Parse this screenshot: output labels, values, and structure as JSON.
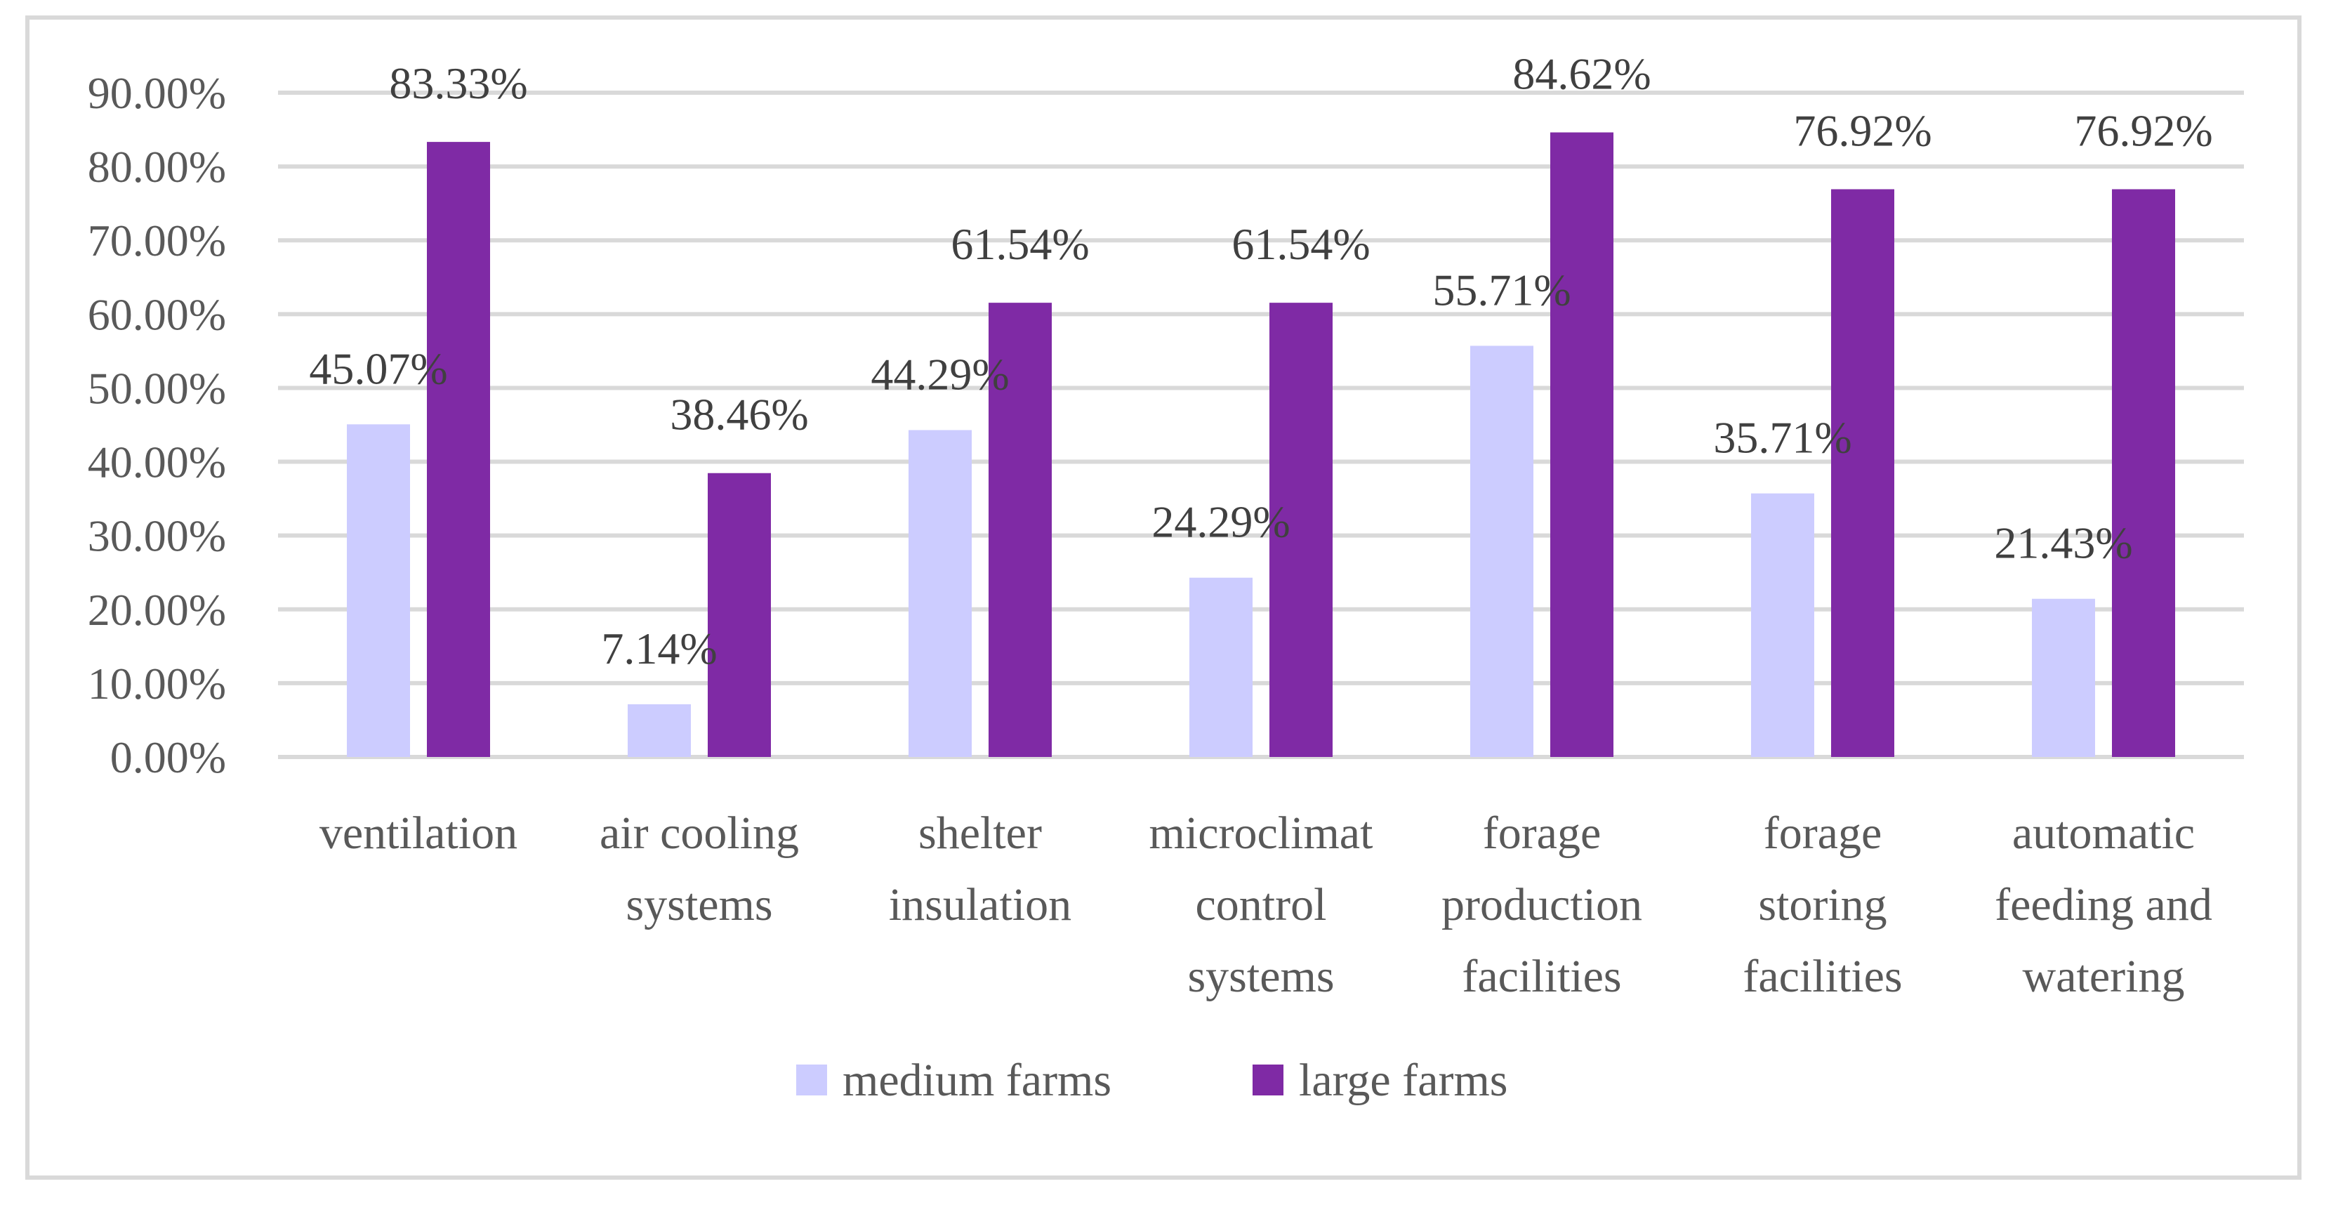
{
  "chart_data": {
    "type": "bar",
    "title": "",
    "xlabel": "",
    "ylabel": "",
    "ylim": [
      0,
      90
    ],
    "yticks": [
      0,
      10,
      20,
      30,
      40,
      50,
      60,
      70,
      80,
      90
    ],
    "ytick_labels": [
      "0.00%",
      "10.00%",
      "20.00%",
      "30.00%",
      "40.00%",
      "50.00%",
      "60.00%",
      "70.00%",
      "80.00%",
      "90.00%"
    ],
    "categories": [
      [
        "ventilation"
      ],
      [
        "air cooling",
        "systems"
      ],
      [
        "shelter",
        "insulation"
      ],
      [
        "microclimat",
        "control",
        "systems"
      ],
      [
        "forage",
        "production",
        "facilities"
      ],
      [
        "forage",
        "storing",
        "facilities"
      ],
      [
        "automatic",
        "feeding and",
        "watering"
      ]
    ],
    "series": [
      {
        "name": "medium farms",
        "color": "#ccccff",
        "values": [
          45.07,
          7.14,
          44.29,
          24.29,
          55.71,
          35.71,
          21.43
        ],
        "labels": [
          "45.07%",
          "7.14%",
          "44.29%",
          "24.29%",
          "55.71%",
          "35.71%",
          "21.43%"
        ]
      },
      {
        "name": "large farms",
        "color": "#7f2aa5",
        "values": [
          83.33,
          38.46,
          61.54,
          61.54,
          84.62,
          76.92,
          76.92
        ],
        "labels": [
          "83.33%",
          "38.46%",
          "61.54%",
          "61.54%",
          "84.62%",
          "76.92%",
          "76.92%"
        ]
      }
    ],
    "legend_position": "bottom",
    "grid": true
  }
}
